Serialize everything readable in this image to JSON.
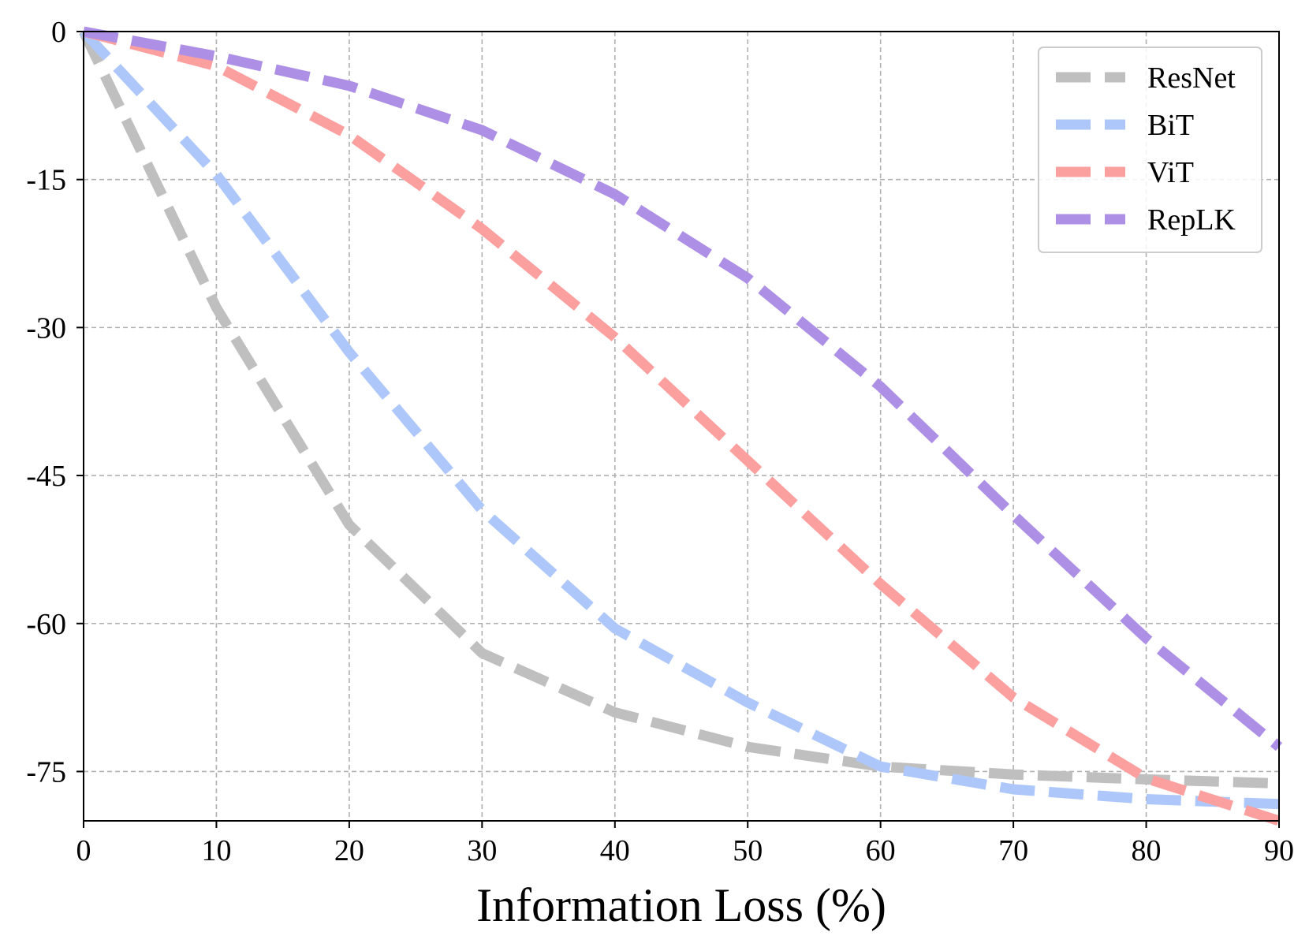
{
  "chart_data": {
    "type": "line",
    "title": "",
    "xlabel": "Information Loss (%)",
    "ylabel": "",
    "xlim": [
      0,
      90
    ],
    "ylim": [
      -80,
      0
    ],
    "xticks": [
      0,
      10,
      20,
      30,
      40,
      50,
      60,
      70,
      80,
      90
    ],
    "xtick_labels": [
      "0",
      "10",
      "20",
      "30",
      "40",
      "50",
      "60",
      "70",
      "80",
      "90"
    ],
    "yticks": [
      0,
      -15,
      -30,
      -45,
      -60,
      -75
    ],
    "ytick_labels": [
      "0",
      "-15",
      "-30",
      "-45",
      "-60",
      "-75"
    ],
    "grid": true,
    "legend_position": "top-right",
    "x": [
      0,
      10,
      20,
      30,
      40,
      50,
      60,
      70,
      80,
      90
    ],
    "series": [
      {
        "name": "ResNet",
        "color": "#bfbfbf",
        "values": [
          0,
          -28,
          -50,
          -63,
          -69,
          -72.5,
          -74.5,
          -75.3,
          -75.8,
          -76.2
        ]
      },
      {
        "name": "BiT",
        "color": "#aec7fa",
        "values": [
          0,
          -14.5,
          -32.5,
          -48.5,
          -60.5,
          -68,
          -74.5,
          -76.8,
          -77.8,
          -78.3
        ]
      },
      {
        "name": "ViT",
        "color": "#fc9f9f",
        "values": [
          0,
          -3.5,
          -10.5,
          -20,
          -31,
          -43.5,
          -56,
          -67.5,
          -75.7,
          -80
        ]
      },
      {
        "name": "RepLK",
        "color": "#ad90e6",
        "values": [
          0,
          -2.5,
          -5.5,
          -10,
          -16.5,
          -25,
          -36,
          -49,
          -61.5,
          -72.5
        ]
      }
    ]
  }
}
